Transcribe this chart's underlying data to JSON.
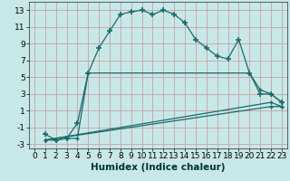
{
  "xlabel": "Humidex (Indice chaleur)",
  "bg_color": "#c8e8e8",
  "grid_color": "#c8a0a0",
  "line_color": "#1a6b6b",
  "xlim": [
    -0.5,
    23.5
  ],
  "ylim": [
    -3.5,
    14.0
  ],
  "xticks": [
    0,
    1,
    2,
    3,
    4,
    5,
    6,
    7,
    8,
    9,
    10,
    11,
    12,
    13,
    14,
    15,
    16,
    17,
    18,
    19,
    20,
    21,
    22,
    23
  ],
  "yticks": [
    -3,
    -1,
    1,
    3,
    5,
    7,
    9,
    11,
    13
  ],
  "line1_x": [
    1,
    2,
    3,
    4,
    5,
    6,
    7,
    8,
    9,
    10,
    11,
    12,
    13,
    14,
    15,
    16,
    17,
    18,
    19,
    20,
    21,
    22,
    23
  ],
  "line1_y": [
    -1.8,
    -2.5,
    -2.3,
    -0.5,
    5.5,
    8.5,
    10.5,
    12.5,
    12.8,
    13.0,
    12.5,
    13.0,
    12.5,
    11.5,
    9.5,
    8.5,
    7.5,
    7.2,
    9.5,
    5.5,
    3.0,
    3.0,
    2.0
  ],
  "line2_x": [
    1,
    2,
    3,
    4,
    5,
    20,
    21,
    22,
    23
  ],
  "line2_y": [
    -2.5,
    -2.5,
    -2.3,
    -2.3,
    5.5,
    5.5,
    3.5,
    3.0,
    2.0
  ],
  "line3_x": [
    1,
    22,
    23
  ],
  "line3_y": [
    -2.5,
    2.0,
    1.5
  ],
  "line4_x": [
    1,
    22,
    23
  ],
  "line4_y": [
    -2.5,
    1.5,
    1.5
  ],
  "xlabel_fontsize": 7.5,
  "tick_fontsize": 6.5
}
